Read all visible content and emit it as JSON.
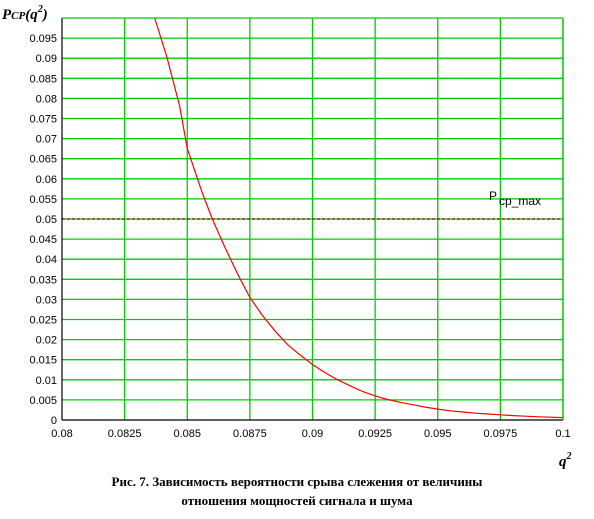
{
  "chart_data": {
    "type": "line",
    "ylabel": {
      "main": "P",
      "sub": "CP",
      "rest": "(q",
      "sup": "2",
      "end": ")"
    },
    "xlabel": {
      "main": "q",
      "sup": "2"
    },
    "xlim": [
      0.08,
      0.1
    ],
    "ylim": [
      0,
      0.1
    ],
    "x_ticks": [
      "0.08",
      "0.0825",
      "0.085",
      "0.0875",
      "0.09",
      "0.0925",
      "0.095",
      "0.0975",
      "0.1"
    ],
    "y_ticks": [
      "0",
      "0.005",
      "0.01",
      "0.015",
      "0.02",
      "0.025",
      "0.03",
      "0.035",
      "0.04",
      "0.045",
      "0.05",
      "0.055",
      "0.06",
      "0.065",
      "0.07",
      "0.075",
      "0.08",
      "0.085",
      "0.09",
      "0.095"
    ],
    "grid": true,
    "series": [
      {
        "color": "#ff0000",
        "x": [
          0.0837,
          0.0842,
          0.0847,
          0.085,
          0.0853,
          0.0856,
          0.086,
          0.0865,
          0.087,
          0.0875,
          0.088,
          0.0885,
          0.089,
          0.0895,
          0.09,
          0.0905,
          0.091,
          0.0915,
          0.092,
          0.0925,
          0.093,
          0.0935,
          0.094,
          0.0945,
          0.095,
          0.0955,
          0.096,
          0.0965,
          0.097,
          0.0975,
          0.098,
          0.0985,
          0.099,
          0.0995,
          0.1
        ],
        "values": [
          0.1,
          0.09,
          0.078,
          0.0675,
          0.062,
          0.0565,
          0.05,
          0.043,
          0.0365,
          0.0305,
          0.026,
          0.0222,
          0.0188,
          0.0162,
          0.0138,
          0.0118,
          0.01,
          0.0085,
          0.0071,
          0.006,
          0.0051,
          0.0044,
          0.0038,
          0.0032,
          0.0027,
          0.0023,
          0.002,
          0.0017,
          0.0015,
          0.0013,
          0.0011,
          0.00095,
          0.0008,
          0.0007,
          0.0006
        ]
      }
    ],
    "threshold": {
      "y": 0.05,
      "color": "#8b0000",
      "label_main": "P",
      "label_sub": "cp_max"
    }
  },
  "caption": {
    "line1": "Рис. 7. Зависимость вероятности срыва слежения от величины",
    "line2": "отношения мощностей сигнала и шума"
  }
}
